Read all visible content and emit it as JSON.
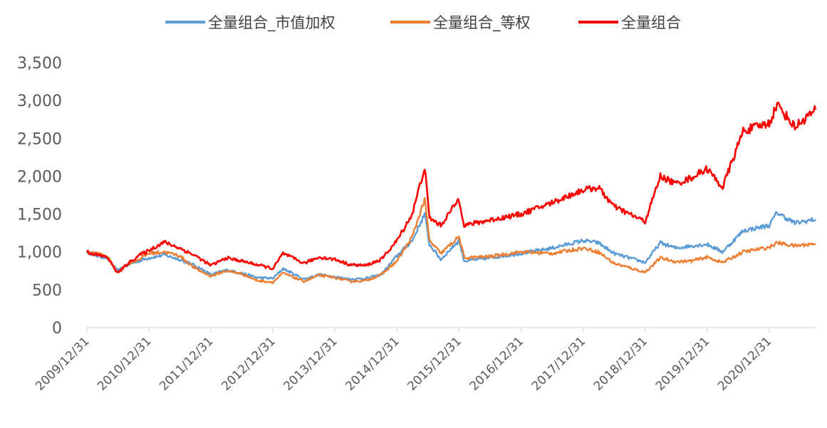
{
  "chart_data": {
    "type": "line",
    "title": "",
    "xlabel": "",
    "ylabel": "",
    "legend_position": "top",
    "grid": false,
    "ylim": [
      0,
      3500
    ],
    "yticks": [
      0,
      500,
      1000,
      1500,
      2000,
      2500,
      3000,
      3500
    ],
    "ytick_labels": [
      "0",
      "500",
      "1,000",
      "1,500",
      "2,000",
      "2,500",
      "3,000",
      "3,500"
    ],
    "xlim": [
      "2009/12/31",
      "2021/09/30"
    ],
    "xtick_labels": [
      "2009/12/31",
      "2010/12/31",
      "2011/12/31",
      "2012/12/31",
      "2013/12/31",
      "2014/12/31",
      "2015/12/31",
      "2016/12/31",
      "2017/12/31",
      "2018/12/31",
      "2019/12/31",
      "2020/12/31"
    ],
    "series": [
      {
        "name": "全量组合_市值加权",
        "color": "#5B9BD5",
        "points": [
          [
            "2009/12/31",
            1000
          ],
          [
            "2010/02/28",
            950
          ],
          [
            "2010/04/30",
            920
          ],
          [
            "2010/06/30",
            750
          ],
          [
            "2010/08/31",
            830
          ],
          [
            "2010/10/31",
            880
          ],
          [
            "2010/12/31",
            920
          ],
          [
            "2011/03/31",
            960
          ],
          [
            "2011/06/30",
            900
          ],
          [
            "2011/09/30",
            820
          ],
          [
            "2011/12/31",
            700
          ],
          [
            "2012/03/31",
            760
          ],
          [
            "2012/06/30",
            720
          ],
          [
            "2012/09/30",
            660
          ],
          [
            "2012/12/31",
            650
          ],
          [
            "2013/02/28",
            780
          ],
          [
            "2013/06/30",
            640
          ],
          [
            "2013/09/30",
            700
          ],
          [
            "2013/12/31",
            670
          ],
          [
            "2014/03/31",
            640
          ],
          [
            "2014/06/30",
            650
          ],
          [
            "2014/09/30",
            700
          ],
          [
            "2014/12/31",
            950
          ],
          [
            "2015/03/31",
            1150
          ],
          [
            "2015/06/12",
            1500
          ],
          [
            "2015/07/10",
            1100
          ],
          [
            "2015/09/15",
            900
          ],
          [
            "2015/12/31",
            1150
          ],
          [
            "2016/01/31",
            880
          ],
          [
            "2016/06/30",
            920
          ],
          [
            "2016/12/31",
            980
          ],
          [
            "2017/06/30",
            1050
          ],
          [
            "2017/12/31",
            1150
          ],
          [
            "2018/03/31",
            1120
          ],
          [
            "2018/06/30",
            980
          ],
          [
            "2018/12/31",
            860
          ],
          [
            "2019/03/31",
            1120
          ],
          [
            "2019/06/30",
            1050
          ],
          [
            "2019/09/30",
            1080
          ],
          [
            "2019/12/31",
            1100
          ],
          [
            "2020/03/31",
            1000
          ],
          [
            "2020/07/31",
            1280
          ],
          [
            "2020/12/31",
            1350
          ],
          [
            "2021/02/15",
            1520
          ],
          [
            "2021/05/31",
            1380
          ],
          [
            "2021/09/30",
            1430
          ]
        ]
      },
      {
        "name": "全量组合_等权",
        "color": "#ED7D31",
        "points": [
          [
            "2009/12/31",
            1000
          ],
          [
            "2010/02/28",
            980
          ],
          [
            "2010/04/30",
            940
          ],
          [
            "2010/06/30",
            720
          ],
          [
            "2010/08/31",
            850
          ],
          [
            "2010/10/31",
            900
          ],
          [
            "2010/12/31",
            980
          ],
          [
            "2011/03/31",
            1000
          ],
          [
            "2011/06/30",
            950
          ],
          [
            "2011/09/30",
            780
          ],
          [
            "2011/12/31",
            680
          ],
          [
            "2012/03/31",
            750
          ],
          [
            "2012/06/30",
            710
          ],
          [
            "2012/09/30",
            620
          ],
          [
            "2012/12/31",
            600
          ],
          [
            "2013/02/28",
            720
          ],
          [
            "2013/06/30",
            610
          ],
          [
            "2013/09/30",
            690
          ],
          [
            "2013/12/31",
            660
          ],
          [
            "2014/03/31",
            610
          ],
          [
            "2014/06/30",
            620
          ],
          [
            "2014/09/30",
            700
          ],
          [
            "2014/12/31",
            880
          ],
          [
            "2015/03/31",
            1200
          ],
          [
            "2015/06/12",
            1700
          ],
          [
            "2015/07/10",
            1150
          ],
          [
            "2015/09/15",
            980
          ],
          [
            "2015/12/31",
            1200
          ],
          [
            "2016/01/31",
            920
          ],
          [
            "2016/06/30",
            940
          ],
          [
            "2016/12/31",
            1000
          ],
          [
            "2017/06/30",
            980
          ],
          [
            "2017/12/31",
            1050
          ],
          [
            "2018/03/31",
            1000
          ],
          [
            "2018/06/30",
            850
          ],
          [
            "2018/12/31",
            730
          ],
          [
            "2019/03/31",
            920
          ],
          [
            "2019/06/30",
            870
          ],
          [
            "2019/09/30",
            880
          ],
          [
            "2019/12/31",
            930
          ],
          [
            "2020/03/31",
            860
          ],
          [
            "2020/07/31",
            1000
          ],
          [
            "2020/12/31",
            1060
          ],
          [
            "2021/02/15",
            1120
          ],
          [
            "2021/05/31",
            1080
          ],
          [
            "2021/09/30",
            1110
          ]
        ]
      },
      {
        "name": "全量组合",
        "color": "#FF0000",
        "points": [
          [
            "2009/12/31",
            1000
          ],
          [
            "2010/02/28",
            960
          ],
          [
            "2010/04/30",
            930
          ],
          [
            "2010/06/30",
            720
          ],
          [
            "2010/08/31",
            850
          ],
          [
            "2010/10/31",
            950
          ],
          [
            "2010/12/31",
            1020
          ],
          [
            "2011/03/31",
            1130
          ],
          [
            "2011/06/30",
            1050
          ],
          [
            "2011/09/30",
            950
          ],
          [
            "2011/12/31",
            820
          ],
          [
            "2012/03/31",
            920
          ],
          [
            "2012/06/30",
            880
          ],
          [
            "2012/09/30",
            830
          ],
          [
            "2012/12/31",
            780
          ],
          [
            "2013/02/28",
            980
          ],
          [
            "2013/06/30",
            850
          ],
          [
            "2013/09/30",
            930
          ],
          [
            "2013/12/31",
            900
          ],
          [
            "2014/03/31",
            830
          ],
          [
            "2014/06/30",
            820
          ],
          [
            "2014/09/30",
            900
          ],
          [
            "2014/12/31",
            1150
          ],
          [
            "2015/03/31",
            1500
          ],
          [
            "2015/06/12",
            2120
          ],
          [
            "2015/07/10",
            1450
          ],
          [
            "2015/09/15",
            1350
          ],
          [
            "2015/12/31",
            1700
          ],
          [
            "2016/01/31",
            1350
          ],
          [
            "2016/06/30",
            1420
          ],
          [
            "2016/12/31",
            1500
          ],
          [
            "2017/06/30",
            1650
          ],
          [
            "2017/12/31",
            1820
          ],
          [
            "2018/03/31",
            1850
          ],
          [
            "2018/06/30",
            1600
          ],
          [
            "2018/12/31",
            1400
          ],
          [
            "2019/03/31",
            2000
          ],
          [
            "2019/06/30",
            1900
          ],
          [
            "2019/09/30",
            1980
          ],
          [
            "2019/12/31",
            2100
          ],
          [
            "2020/03/31",
            1850
          ],
          [
            "2020/07/31",
            2600
          ],
          [
            "2020/12/31",
            2700
          ],
          [
            "2021/02/15",
            2950
          ],
          [
            "2021/05/31",
            2650
          ],
          [
            "2021/09/30",
            2880
          ]
        ]
      }
    ]
  }
}
